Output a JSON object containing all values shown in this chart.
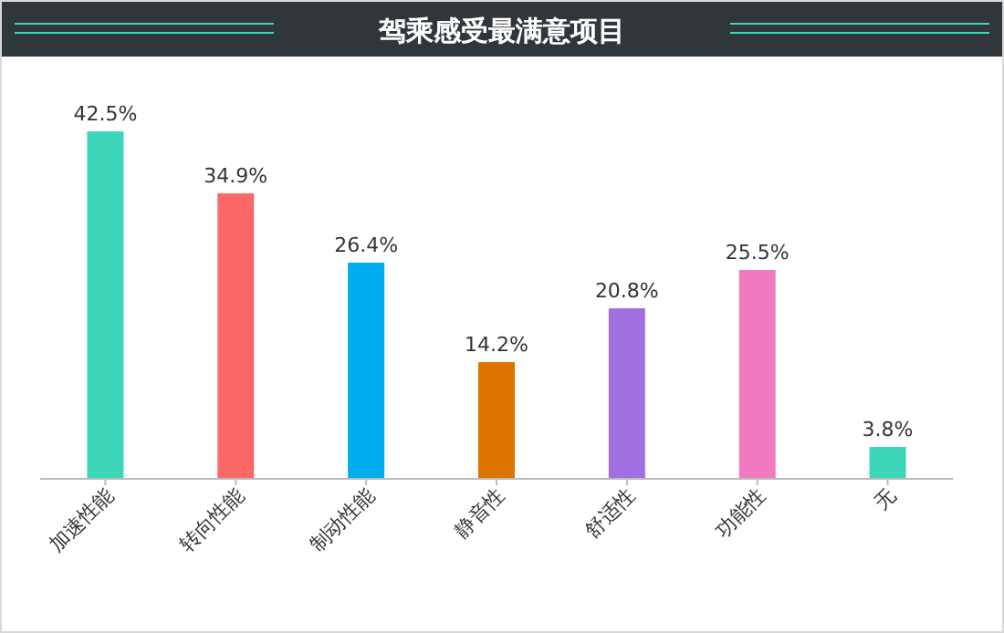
{
  "chart_data": {
    "type": "bar",
    "title": "驾乘感受最满意项目",
    "categories": [
      "加速性能",
      "转向性能",
      "制动性能",
      "静音性",
      "舒适性",
      "功能性",
      "无"
    ],
    "values": [
      42.5,
      34.9,
      26.4,
      14.2,
      20.8,
      25.5,
      3.8
    ],
    "colors": [
      "#3dd6b8",
      "#fb6868",
      "#00aeef",
      "#de7400",
      "#a070e0",
      "#f07ac0",
      "#3dd6b8"
    ],
    "value_labels": [
      "42.5%",
      "34.9%",
      "26.4%",
      "14.2%",
      "20.8%",
      "25.5%",
      "3.8%"
    ]
  }
}
